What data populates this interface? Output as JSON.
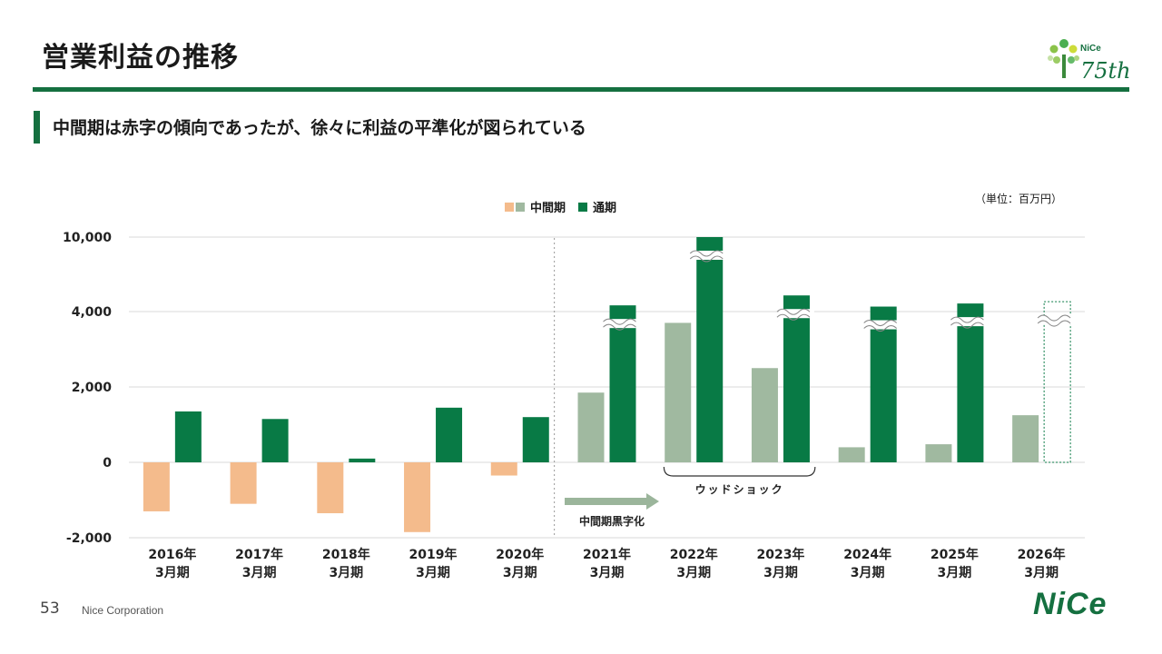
{
  "page": {
    "title": "営業利益の推移",
    "subtitle": "中間期は赤字の傾向であったが、徐々に利益の平準化が図られている",
    "unit": "（単位：百万円）",
    "page_number": "53",
    "company": "Nice Corporation",
    "logo_text": "NiCe",
    "badge_brand": "NiCe",
    "badge_number": "75th"
  },
  "legend": {
    "interim": "中間期",
    "full": "通期"
  },
  "annotations": {
    "wood_shock": "ウッドショック",
    "interim_profit": "中間期黒字化"
  },
  "colors": {
    "brand": "#157040",
    "interim_loss": "#f4bb8c",
    "interim_profit": "#a0b9a0",
    "full_year": "#087a45"
  },
  "chart_data": {
    "type": "bar",
    "categories": [
      "2016年\n3月期",
      "2017年\n3月期",
      "2018年\n3月期",
      "2019年\n3月期",
      "2020年\n3月期",
      "2021年\n3月期",
      "2022年\n3月期",
      "2023年\n3月期",
      "2024年\n3月期",
      "2025年\n3月期",
      "2026年\n3月期"
    ],
    "series": [
      {
        "name": "中間期",
        "values": [
          -1300,
          -1100,
          -1350,
          -1850,
          -350,
          1850,
          3700,
          2500,
          400,
          480,
          1250
        ]
      },
      {
        "name": "通期",
        "values": [
          1350,
          1150,
          100,
          1450,
          1200,
          4500,
          10000,
          5300,
          4400,
          4650,
          4800
        ]
      }
    ],
    "yticks": [
      "10,000",
      "4,000",
      "2,000",
      "0",
      "-2,000"
    ],
    "axis_break": "4,000 – 10,000",
    "forecast": "2026年3月期 通期"
  }
}
